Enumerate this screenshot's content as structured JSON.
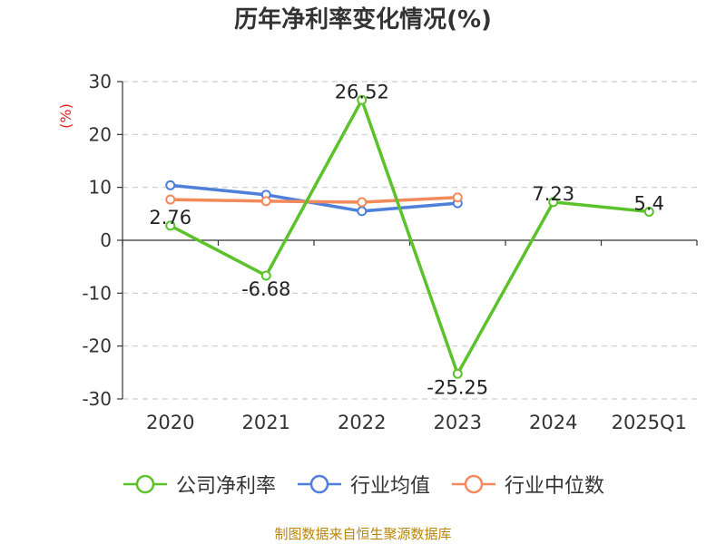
{
  "title": "历年净利率变化情况(%)",
  "source_note": "制图数据来自恒生聚源数据库",
  "chart_data": {
    "type": "line",
    "title": "历年净利率变化情况(%)",
    "ylabel": "(%)",
    "xlabel": "",
    "categories": [
      "2020",
      "2021",
      "2022",
      "2023",
      "2024",
      "2025Q1"
    ],
    "ylim": [
      -30,
      30
    ],
    "yticks": [
      30,
      20,
      10,
      0,
      -10,
      -20,
      -30
    ],
    "grid": true,
    "legend_position": "bottom",
    "series": [
      {
        "name": "公司净利率",
        "color": "#5cc22c",
        "values": [
          2.76,
          -6.68,
          26.52,
          -25.25,
          7.23,
          5.4
        ],
        "labels": [
          "2.76",
          "-6.68",
          "26.52",
          "-25.25",
          "7.23",
          "5.4"
        ]
      },
      {
        "name": "行业均值",
        "color": "#4e7fdb",
        "values": [
          10.4,
          8.6,
          5.5,
          7.0,
          null,
          null
        ]
      },
      {
        "name": "行业中位数",
        "color": "#f28a5a",
        "values": [
          7.7,
          7.4,
          7.2,
          8.1,
          null,
          null
        ]
      }
    ]
  },
  "colors": {
    "axis": "#333333",
    "grid": "#cccccc",
    "ylabel": "#e02020",
    "source": "#b8860b"
  }
}
